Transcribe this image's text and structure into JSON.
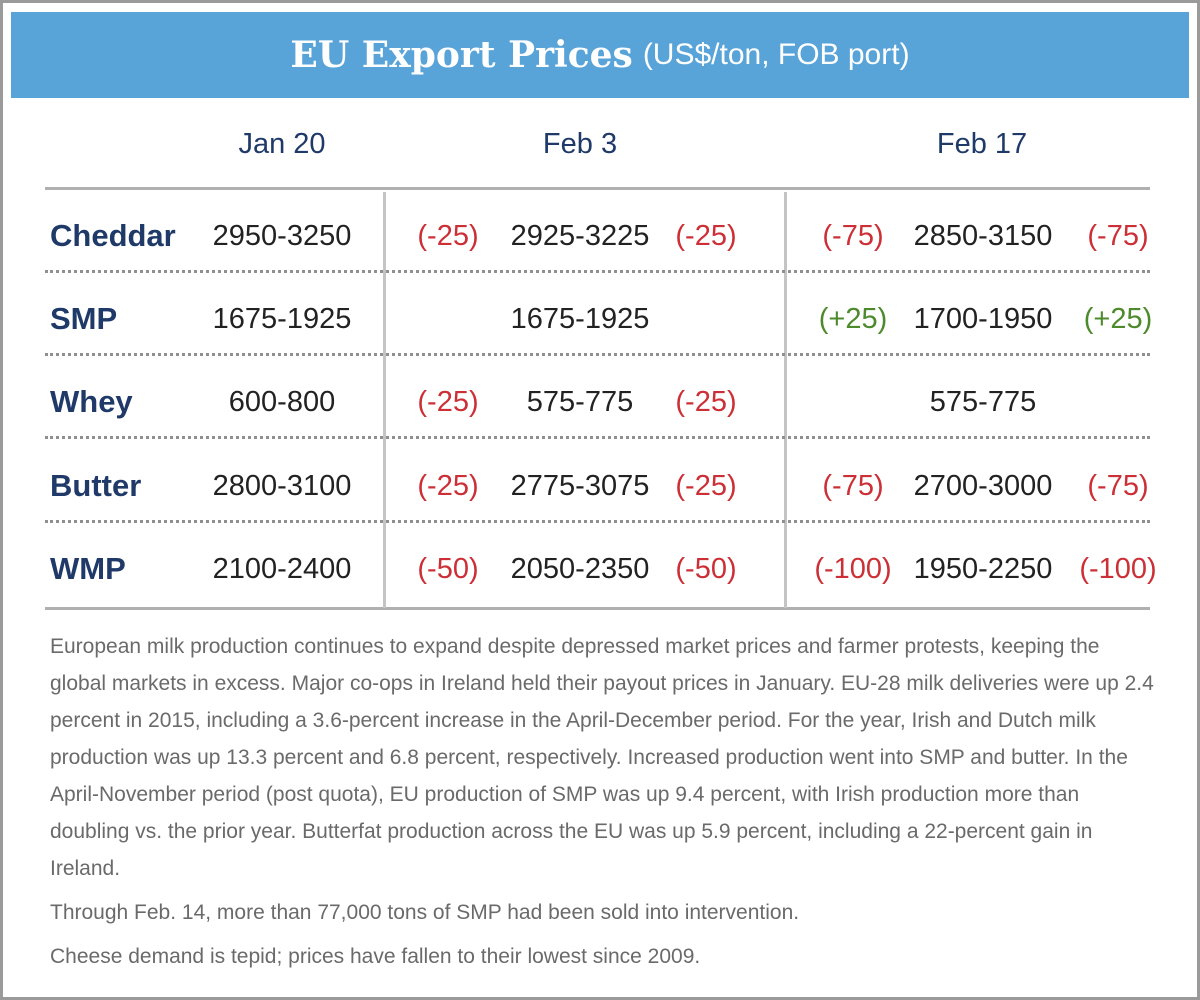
{
  "header": {
    "title": "EU Export Prices",
    "subtitle": "(US$/ton, FOB port)"
  },
  "columns": [
    "Jan 20",
    "Feb 3",
    "Feb 17"
  ],
  "rows": [
    {
      "product": "Cheddar",
      "jan20": "2950-3250",
      "feb3": {
        "change_left": "(-25)",
        "value": "2925-3225",
        "change_right": "(-25)"
      },
      "feb17": {
        "change_left": "(-75)",
        "value": "2850-3150",
        "change_right": "(-75)"
      }
    },
    {
      "product": "SMP",
      "jan20": "1675-1925",
      "feb3": {
        "change_left": "",
        "value": "1675-1925",
        "change_right": ""
      },
      "feb17": {
        "change_left": "(+25)",
        "value": "1700-1950",
        "change_right": "(+25)"
      }
    },
    {
      "product": "Whey",
      "jan20": "600-800",
      "feb3": {
        "change_left": "(-25)",
        "value": "575-775",
        "change_right": "(-25)"
      },
      "feb17": {
        "change_left": "",
        "value": "575-775",
        "change_right": ""
      }
    },
    {
      "product": "Butter",
      "jan20": "2800-3100",
      "feb3": {
        "change_left": "(-25)",
        "value": "2775-3075",
        "change_right": "(-25)"
      },
      "feb17": {
        "change_left": "(-75)",
        "value": "2700-3000",
        "change_right": "(-75)"
      }
    },
    {
      "product": "WMP",
      "jan20": "2100-2400",
      "feb3": {
        "change_left": "(-50)",
        "value": "2050-2350",
        "change_right": "(-50)"
      },
      "feb17": {
        "change_left": "(-100)",
        "value": "1950-2250",
        "change_right": "(-100)"
      }
    }
  ],
  "notes": [
    "European milk production continues to expand despite depressed market prices and farmer protests, keeping the global markets in excess. Major co-ops in Ireland held their payout prices in January. EU-28 milk deliveries were up 2.4 percent in 2015, including a 3.6-percent increase in the April-December period. For the year, Irish and Dutch milk production was up 13.3 percent and 6.8 percent, respectively. Increased production went into SMP and butter. In the April-November period (post quota), EU production of SMP was up 9.4 percent, with Irish production more than doubling vs. the prior year. Butterfat production across the EU was up 5.9 percent, including a 22-percent gain in Ireland.",
    "Through Feb. 14, more than 77,000 tons of SMP had been sold into intervention.",
    "Cheese demand is tepid; prices have fallen to their lowest since 2009."
  ],
  "colors": {
    "banner": "#58a3d8",
    "label": "#1f3a68",
    "decrease": "#cc2f36",
    "increase": "#4d8a2c",
    "notes_text": "#6a6a6a"
  }
}
